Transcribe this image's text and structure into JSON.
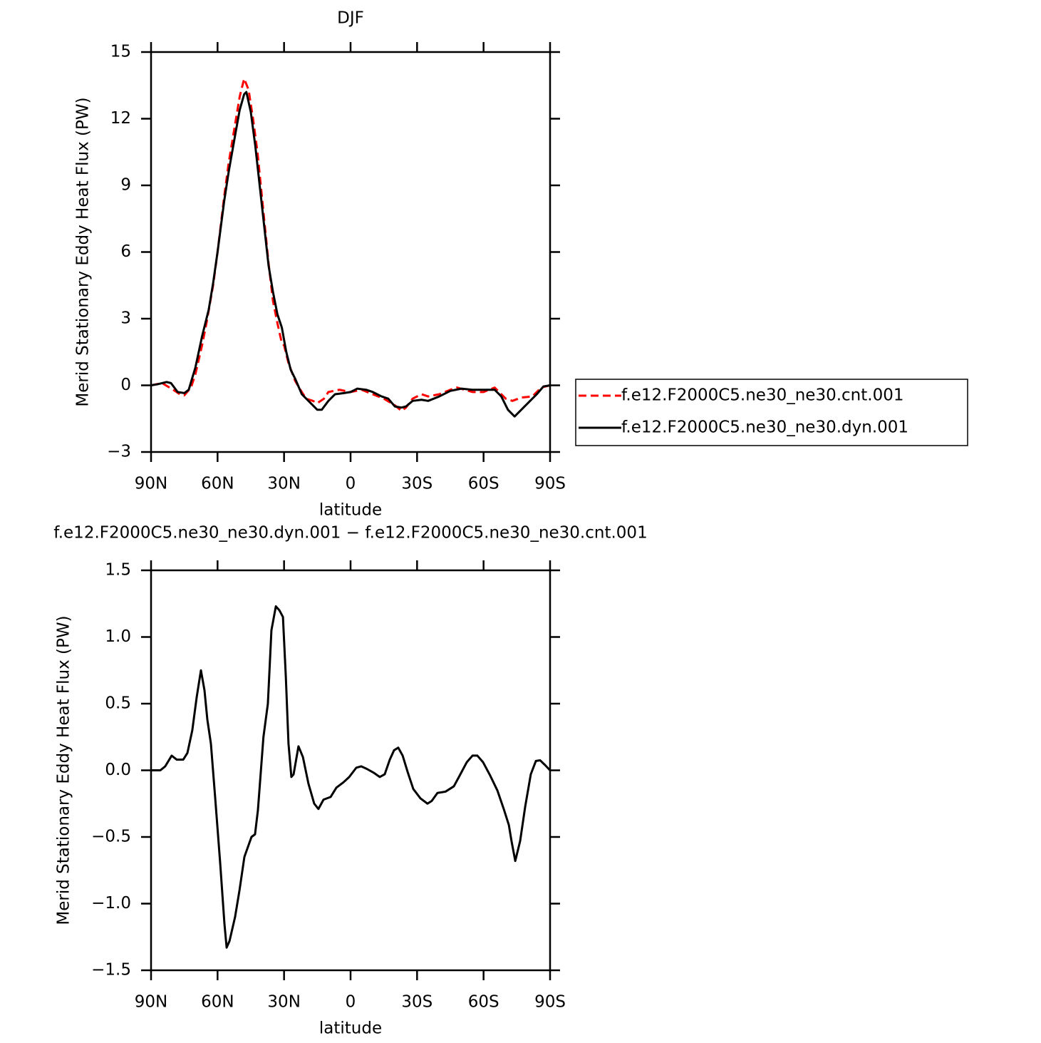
{
  "chart_data": [
    {
      "type": "line",
      "title": "DJF",
      "xlabel": "latitude",
      "ylabel": "Merid Stationary Eddy Heat Flux (PW)",
      "xlim": [
        90,
        -90
      ],
      "xticks": [
        {
          "value": 90,
          "label": "90N"
        },
        {
          "value": 60,
          "label": "60N"
        },
        {
          "value": 30,
          "label": "30N"
        },
        0,
        {
          "value": -30,
          "label": "30S"
        },
        {
          "value": -60,
          "label": "60S"
        },
        {
          "value": -90,
          "label": "90S"
        }
      ],
      "ylim": [
        -3,
        15
      ],
      "yticks": [
        {
          "value": -3,
          "label": "−3"
        },
        0,
        3,
        6,
        9,
        12,
        15
      ],
      "legend": "right",
      "series": [
        {
          "name": "f.e12.F2000C5.ne30_ne30.cnt.001",
          "color": "#ff0000",
          "line_style": "dashed",
          "x": [
            90,
            85,
            80,
            77,
            75,
            72,
            70,
            67,
            65,
            62,
            60,
            57,
            55,
            52,
            50,
            48,
            46,
            44,
            42,
            40,
            37,
            35,
            33,
            31,
            30,
            28,
            25,
            22,
            20,
            17,
            15,
            12,
            10,
            5,
            0,
            -5,
            -10,
            -15,
            -20,
            -23,
            -25,
            -28,
            -32,
            -35,
            -40,
            -45,
            -48,
            -55,
            -60,
            -65,
            -70,
            -73,
            -77,
            -82,
            -86,
            -90
          ],
          "values": [
            0,
            0.1,
            -0.2,
            -0.4,
            -0.45,
            -0.1,
            0.5,
            1.8,
            2.8,
            4.5,
            6.0,
            8.5,
            10.0,
            11.8,
            13.0,
            13.8,
            13.3,
            12.0,
            10.5,
            8.5,
            5.5,
            3.8,
            2.8,
            1.9,
            1.8,
            1.0,
            0.2,
            -0.3,
            -0.6,
            -0.7,
            -0.8,
            -0.6,
            -0.3,
            -0.2,
            -0.3,
            -0.2,
            -0.4,
            -0.6,
            -0.9,
            -1.15,
            -1.0,
            -0.6,
            -0.4,
            -0.5,
            -0.4,
            -0.2,
            -0.1,
            -0.3,
            -0.3,
            -0.1,
            -0.6,
            -0.7,
            -0.55,
            -0.5,
            -0.1,
            0
          ]
        },
        {
          "name": "f.e12.F2000C5.ne30_ne30.dyn.001",
          "color": "#000000",
          "line_style": "solid",
          "x": [
            90,
            87,
            83,
            81,
            78,
            75,
            73,
            70,
            67,
            64,
            62,
            60,
            57,
            55,
            52,
            50,
            48,
            47,
            45,
            43,
            41,
            39,
            37,
            35,
            33,
            31,
            29,
            27,
            25,
            22,
            20,
            17,
            15,
            13,
            10,
            7,
            3,
            0,
            -3,
            -7,
            -10,
            -14,
            -17,
            -20,
            -23,
            -25,
            -28,
            -32,
            -35,
            -40,
            -45,
            -50,
            -55,
            -60,
            -65,
            -68,
            -71,
            -74,
            -77,
            -80,
            -84,
            -87,
            -90
          ],
          "values": [
            0,
            0.05,
            0.15,
            0.1,
            -0.3,
            -0.35,
            -0.2,
            0.8,
            2.2,
            3.4,
            4.6,
            6.0,
            8.3,
            9.6,
            11.3,
            12.4,
            13.1,
            13.2,
            12.3,
            10.8,
            9.0,
            7.2,
            5.4,
            4.2,
            3.2,
            2.6,
            1.5,
            0.7,
            0.3,
            -0.4,
            -0.6,
            -0.9,
            -1.1,
            -1.1,
            -0.7,
            -0.4,
            -0.35,
            -0.3,
            -0.15,
            -0.2,
            -0.3,
            -0.5,
            -0.6,
            -0.95,
            -1.0,
            -0.95,
            -0.7,
            -0.65,
            -0.7,
            -0.5,
            -0.25,
            -0.15,
            -0.2,
            -0.2,
            -0.2,
            -0.5,
            -1.1,
            -1.4,
            -1.1,
            -0.8,
            -0.4,
            -0.05,
            0
          ]
        }
      ]
    },
    {
      "type": "line",
      "title": "f.e12.F2000C5.ne30_ne30.dyn.001 − f.e12.F2000C5.ne30_ne30.cnt.001",
      "xlabel": "latitude",
      "ylabel": "Merid Stationary Eddy Heat Flux (PW)",
      "xlim": [
        90,
        -90
      ],
      "xticks": [
        {
          "value": 90,
          "label": "90N"
        },
        {
          "value": 60,
          "label": "60N"
        },
        {
          "value": 30,
          "label": "30N"
        },
        0,
        {
          "value": -30,
          "label": "30S"
        },
        {
          "value": -60,
          "label": "60S"
        },
        {
          "value": -90,
          "label": "90S"
        }
      ],
      "ylim": [
        -1.5,
        1.5
      ],
      "yticks": [
        {
          "value": -1.5,
          "label": "−1.5"
        },
        {
          "value": -1.0,
          "label": "−1.0"
        },
        {
          "value": -0.5,
          "label": "−0.5"
        },
        {
          "value": 0,
          "label": "0.0"
        },
        0.5,
        {
          "value": 1.0,
          "label": "1.0"
        },
        1.5
      ],
      "color": "#000000",
      "x": [
        90,
        85.8,
        83.6,
        80.7,
        78.4,
        75.5,
        73.6,
        71.4,
        69.4,
        67.5,
        65.9,
        64.6,
        63,
        61.1,
        58.8,
        56.9,
        55.9,
        54.6,
        52.1,
        50.1,
        47.9,
        44.7,
        43.1,
        41.8,
        39.3,
        37.3,
        35.7,
        33.7,
        32.1,
        30.5,
        29.2,
        28,
        26.7,
        25.7,
        23.5,
        21.5,
        19,
        16.4,
        14.5,
        12.2,
        9,
        6.4,
        3.2,
        0.6,
        -2.6,
        -4.8,
        -7.4,
        -10.6,
        -13.2,
        -15.4,
        -17.7,
        -19.6,
        -21.5,
        -23.5,
        -25.7,
        -28.3,
        -31.5,
        -34.7,
        -36.6,
        -39.2,
        -42.8,
        -46.6,
        -49.2,
        -52.4,
        -55,
        -57.2,
        -59.8,
        -63,
        -66.2,
        -69.1,
        -71.4,
        -72.6,
        -74.3,
        -76.5,
        -78.8,
        -81.3,
        -83.6,
        -85.5,
        -87.7,
        -90
      ],
      "values": [
        0,
        0,
        0.03,
        0.11,
        0.08,
        0.08,
        0.13,
        0.3,
        0.55,
        0.75,
        0.6,
        0.38,
        0.2,
        -0.2,
        -0.7,
        -1.15,
        -1.33,
        -1.28,
        -1.1,
        -0.9,
        -0.65,
        -0.5,
        -0.48,
        -0.3,
        0.25,
        0.5,
        1.05,
        1.23,
        1.2,
        1.15,
        0.7,
        0.2,
        -0.05,
        -0.03,
        0.18,
        0.1,
        -0.1,
        -0.25,
        -0.29,
        -0.22,
        -0.2,
        -0.13,
        -0.09,
        -0.05,
        0.02,
        0.03,
        0.01,
        -0.02,
        -0.05,
        -0.03,
        0.08,
        0.15,
        0.17,
        0.11,
        -0.01,
        -0.14,
        -0.21,
        -0.25,
        -0.23,
        -0.17,
        -0.16,
        -0.12,
        -0.04,
        0.06,
        0.11,
        0.11,
        0.06,
        -0.04,
        -0.15,
        -0.29,
        -0.41,
        -0.53,
        -0.68,
        -0.53,
        -0.27,
        -0.03,
        0.07,
        0.075,
        0.04,
        0
      ]
    }
  ]
}
